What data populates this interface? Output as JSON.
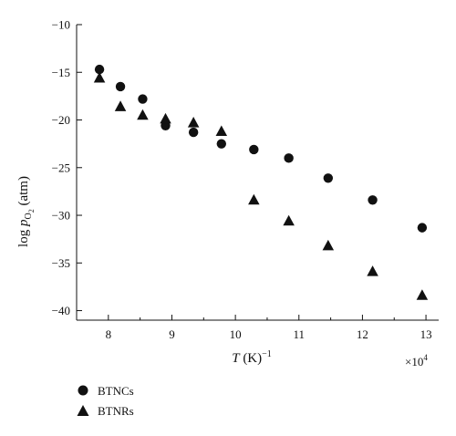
{
  "chart_data": {
    "type": "scatter",
    "xlabel_italic": "T",
    "xlabel_rest": " (K)",
    "xlabel_sup": "−1",
    "x_multiplier_base": "×10",
    "x_multiplier_exp": "4",
    "ylabel_prefix": "log ",
    "ylabel_p": "p",
    "ylabel_sub": "O",
    "ylabel_subsub": "2",
    "ylabel_suffix": " (atm)",
    "xlim": [
      7.5,
      13.2
    ],
    "ylim": [
      -41,
      -10
    ],
    "xticks": [
      8,
      9,
      10,
      11,
      12,
      13
    ],
    "xtick_labels": [
      "8",
      "9",
      "10",
      "11",
      "12",
      "13"
    ],
    "yticks": [
      -10,
      -15,
      -20,
      -25,
      -30,
      -35,
      -40
    ],
    "ytick_labels": [
      "−10",
      "−15",
      "−20",
      "−25",
      "−30",
      "−35",
      "−40"
    ],
    "legend_position": "below-left",
    "grid": false,
    "series": [
      {
        "name": "BTNCs",
        "marker": "circle",
        "color": "#111111",
        "x": [
          7.86,
          8.19,
          8.54,
          8.9,
          9.34,
          9.78,
          10.29,
          10.84,
          11.46,
          12.16,
          12.94
        ],
        "y": [
          -14.7,
          -16.5,
          -17.8,
          -20.6,
          -21.3,
          -22.5,
          -23.1,
          -24.0,
          -26.1,
          -28.4,
          -31.3
        ]
      },
      {
        "name": "BTNRs",
        "marker": "triangle",
        "color": "#111111",
        "x": [
          7.86,
          8.19,
          8.54,
          8.9,
          9.34,
          9.78,
          10.29,
          10.84,
          11.46,
          12.16,
          12.94
        ],
        "y": [
          -15.6,
          -18.6,
          -19.5,
          -19.9,
          -20.3,
          -21.2,
          -28.4,
          -30.6,
          -33.2,
          -35.9,
          -38.4
        ]
      }
    ]
  }
}
